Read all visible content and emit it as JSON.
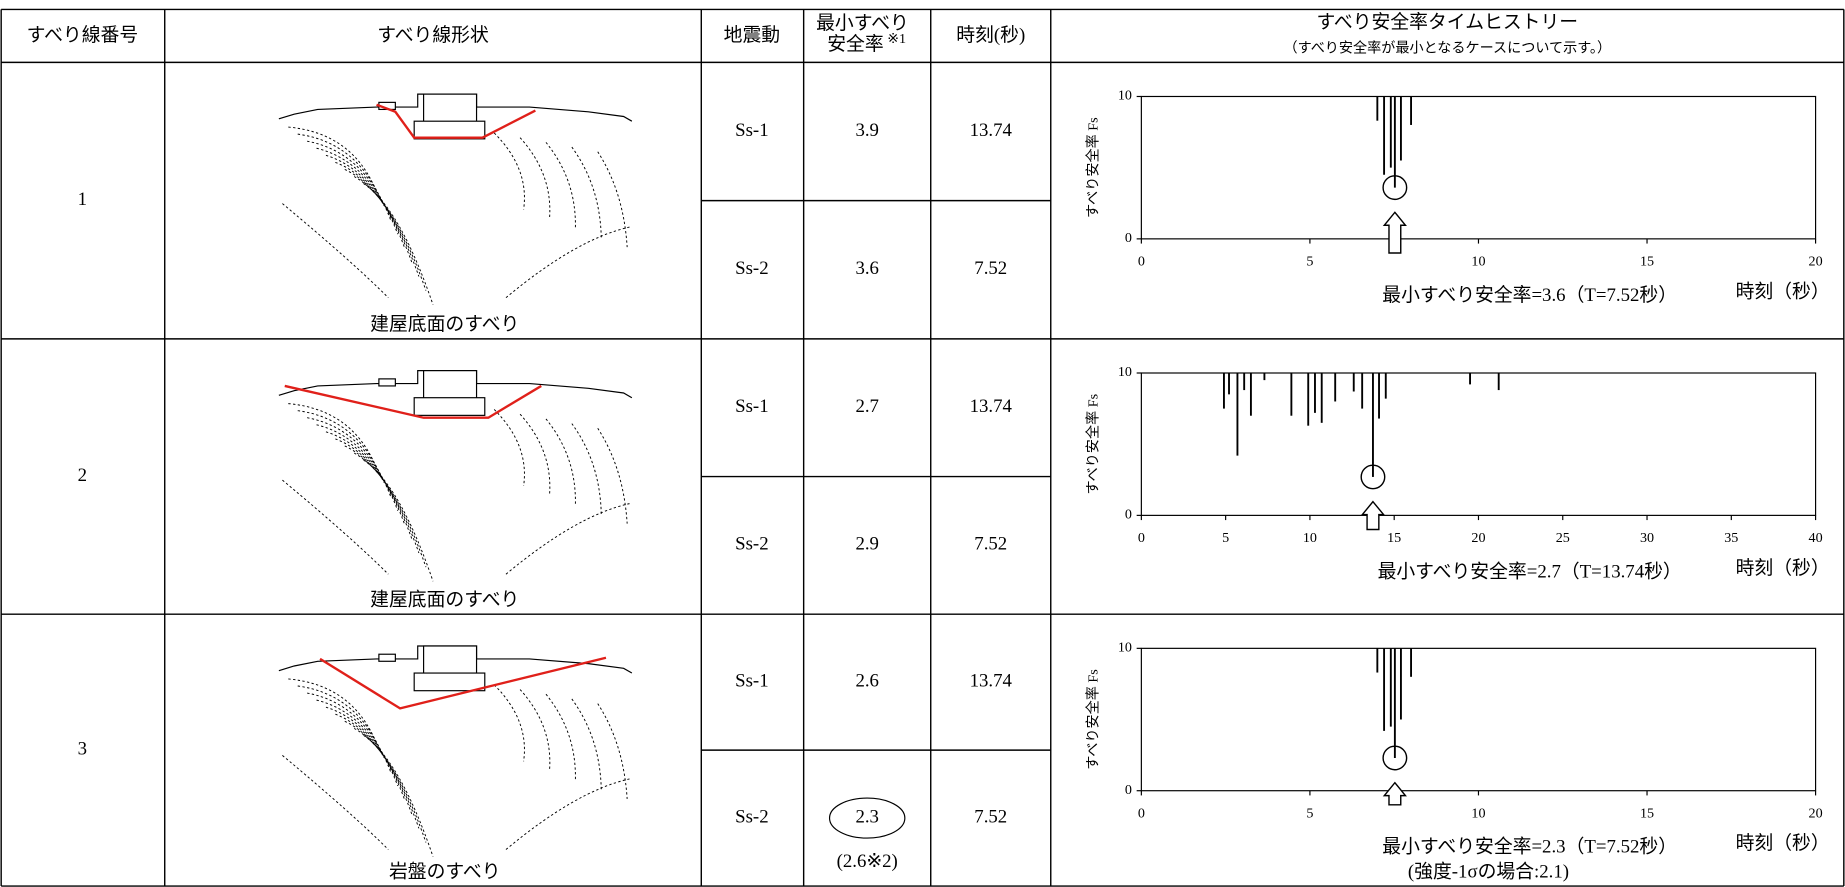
{
  "table": {
    "headers": {
      "line_no": "すべり線番号",
      "shape": "すべり線形状",
      "quake": "地震動",
      "min_fs": {
        "line1": "最小すべり",
        "line2": "安全率",
        "note": "※1"
      },
      "time": "時刻(秒)",
      "history": {
        "title": "すべり安全率タイムヒストリー",
        "note": "（すべり安全率が最小となるケースについて示す。）"
      }
    },
    "rows": [
      {
        "no": "1",
        "shape_caption": "建屋底面のすべり",
        "cases": [
          {
            "quake": "Ss-1",
            "fs": "3.9",
            "time": "13.74"
          },
          {
            "quake": "Ss-2",
            "fs": "3.6",
            "time": "7.52"
          }
        ],
        "chart": {
          "type": "line",
          "y_label": "すべり安全率 Fs",
          "x_label": "時刻（秒）",
          "xlim": [
            0,
            20
          ],
          "xticks": [
            0,
            5,
            10,
            15,
            20
          ],
          "ylim": [
            0,
            10
          ],
          "yticks": [
            0,
            10
          ],
          "color": "#000000",
          "series": [
            {
              "x": [
                7.0,
                7.2,
                7.4,
                7.52,
                7.7,
                8.0
              ],
              "values": [
                8.3,
                4.5,
                5.0,
                3.6,
                5.5,
                8.0
              ]
            }
          ],
          "minimum": {
            "x": 7.52,
            "y": 3.6
          },
          "caption": "最小すべり安全率=3.6（T=7.52秒）"
        }
      },
      {
        "no": "2",
        "shape_caption": "建屋底面のすべり",
        "cases": [
          {
            "quake": "Ss-1",
            "fs": "2.7",
            "time": "13.74"
          },
          {
            "quake": "Ss-2",
            "fs": "2.9",
            "time": "7.52"
          }
        ],
        "chart": {
          "type": "line",
          "y_label": "すべり安全率 Fs",
          "x_label": "時刻（秒）",
          "xlim": [
            0,
            40
          ],
          "xticks": [
            0,
            5,
            10,
            15,
            20,
            25,
            30,
            35,
            40
          ],
          "ylim": [
            0,
            10
          ],
          "yticks": [
            0,
            10
          ],
          "color": "#000000",
          "series": [
            {
              "x": [
                4.9,
                5.2,
                5.7,
                6.1,
                6.5,
                7.3,
                8.9,
                9.9,
                10.3,
                10.7,
                11.5,
                12.6,
                13.1,
                13.74,
                14.1,
                14.5,
                19.5,
                21.2
              ],
              "values": [
                7.5,
                8.5,
                4.2,
                8.8,
                7.0,
                9.5,
                7.0,
                6.3,
                7.2,
                6.5,
                8.0,
                8.7,
                7.5,
                2.7,
                6.8,
                8.2,
                9.2,
                8.8
              ]
            }
          ],
          "minimum": {
            "x": 13.74,
            "y": 2.7
          },
          "caption": "最小すべり安全率=2.7（T=13.74秒）"
        }
      },
      {
        "no": "3",
        "shape_caption": "岩盤のすべり",
        "cases": [
          {
            "quake": "Ss-1",
            "fs": "2.6",
            "time": "13.74"
          },
          {
            "quake": "Ss-2",
            "fs": "2.3",
            "time": "7.52",
            "alt": "(2.6※2)"
          }
        ],
        "chart": {
          "type": "line",
          "y_label": "すべり安全率 Fs",
          "x_label": "時刻（秒）",
          "xlim": [
            0,
            20
          ],
          "xticks": [
            0,
            5,
            10,
            15,
            20
          ],
          "ylim": [
            0,
            10
          ],
          "yticks": [
            0,
            10
          ],
          "color": "#000000",
          "series": [
            {
              "x": [
                7.0,
                7.2,
                7.4,
                7.52,
                7.7,
                8.0
              ],
              "values": [
                8.3,
                4.2,
                4.5,
                2.3,
                5.0,
                8.0
              ]
            }
          ],
          "minimum": {
            "x": 7.52,
            "y": 2.3
          },
          "caption": "最小すべり安全率=2.3（T=7.52秒）",
          "note": "(強度-1σの場合:2.1)"
        }
      }
    ]
  }
}
